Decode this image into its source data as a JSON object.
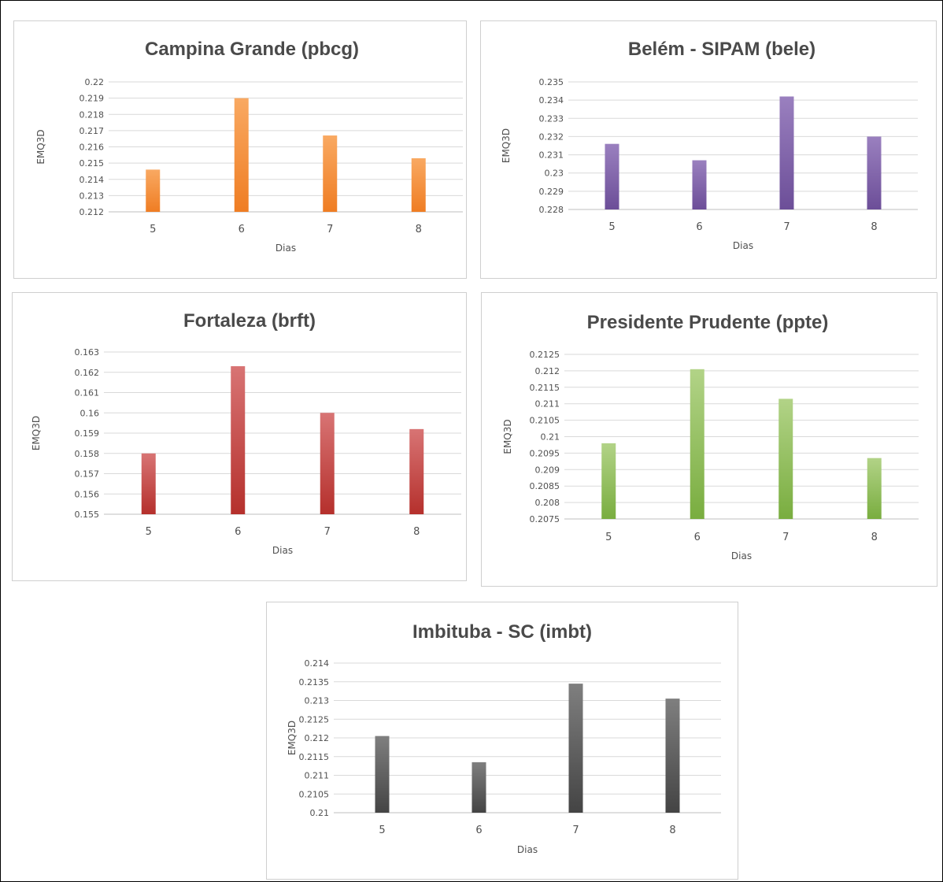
{
  "chart_data": [
    {
      "type": "bar",
      "title": "Campina Grande (pbcg)",
      "xlabel": "Dias",
      "ylabel": "EMQ3D",
      "categories": [
        "5",
        "6",
        "7",
        "8"
      ],
      "values": [
        0.2146,
        0.219,
        0.2167,
        0.2153
      ],
      "ylim": [
        0.212,
        0.22
      ],
      "yticks": [
        "0.212",
        "0.213",
        "0.214",
        "0.215",
        "0.216",
        "0.217",
        "0.218",
        "0.219",
        "0.22"
      ],
      "grid": true,
      "legend": "none",
      "colors": {
        "top": "#f9a962",
        "bottom": "#ef7d23"
      }
    },
    {
      "type": "bar",
      "title": "Belém - SIPAM (bele)",
      "xlabel": "Dias",
      "ylabel": "EMQ3D",
      "categories": [
        "5",
        "6",
        "7",
        "8"
      ],
      "values": [
        0.2316,
        0.2307,
        0.2342,
        0.232
      ],
      "ylim": [
        0.228,
        0.235
      ],
      "yticks": [
        "0.228",
        "0.229",
        "0.23",
        "0.231",
        "0.232",
        "0.233",
        "0.234",
        "0.235"
      ],
      "grid": true,
      "legend": "none",
      "colors": {
        "top": "#9a80bf",
        "bottom": "#6c4e98"
      }
    },
    {
      "type": "bar",
      "title": "Fortaleza (brft)",
      "xlabel": "Dias",
      "ylabel": "EMQ3D",
      "categories": [
        "5",
        "6",
        "7",
        "8"
      ],
      "values": [
        0.158,
        0.1623,
        0.16,
        0.1592
      ],
      "ylim": [
        0.155,
        0.163
      ],
      "yticks": [
        "0.155",
        "0.156",
        "0.157",
        "0.158",
        "0.159",
        "0.16",
        "0.161",
        "0.162",
        "0.163"
      ],
      "grid": true,
      "legend": "none",
      "colors": {
        "top": "#d87474",
        "bottom": "#b5302c"
      }
    },
    {
      "type": "bar",
      "title": "Presidente Prudente (ppte)",
      "xlabel": "Dias",
      "ylabel": "EMQ3D",
      "categories": [
        "5",
        "6",
        "7",
        "8"
      ],
      "values": [
        0.2098,
        0.21205,
        0.21115,
        0.20935
      ],
      "ylim": [
        0.2075,
        0.2125
      ],
      "yticks": [
        "0.2075",
        "0.208",
        "0.2085",
        "0.209",
        "0.2095",
        "0.21",
        "0.2105",
        "0.211",
        "0.2115",
        "0.212",
        "0.2125"
      ],
      "grid": true,
      "legend": "none",
      "colors": {
        "top": "#b2d387",
        "bottom": "#79ad3f"
      }
    },
    {
      "type": "bar",
      "title": "Imbituba - SC (imbt)",
      "xlabel": "Dias",
      "ylabel": "EMQ3D",
      "categories": [
        "5",
        "6",
        "7",
        "8"
      ],
      "values": [
        0.21205,
        0.21135,
        0.21345,
        0.21305
      ],
      "ylim": [
        0.21,
        0.214
      ],
      "yticks": [
        "0.21",
        "0.2105",
        "0.211",
        "0.2115",
        "0.212",
        "0.2125",
        "0.213",
        "0.2135",
        "0.214"
      ],
      "grid": true,
      "legend": "none",
      "colors": {
        "top": "#7f7f7f",
        "bottom": "#444444"
      }
    }
  ]
}
